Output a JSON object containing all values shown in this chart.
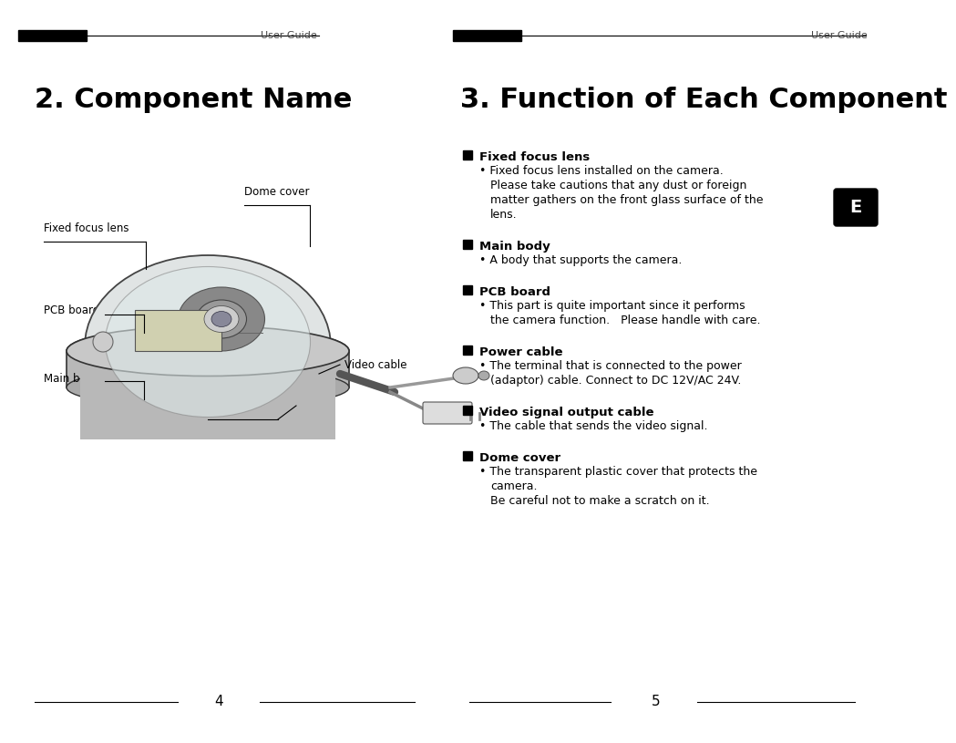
{
  "bg_color": "#ffffff",
  "header_text": "User Guide",
  "header_text_color": "#444444",
  "left_title": "2. Component Name",
  "right_title": "3. Function of Each Component",
  "title_color": "#000000",
  "page_left": "4",
  "page_right": "5",
  "e_badge_color": "#000000",
  "e_badge_text": "E",
  "e_badge_text_color": "#ffffff",
  "sections": [
    {
      "heading": "Fixed focus lens",
      "lines": [
        {
          "indent": 1,
          "text": "• Fixed focus lens installed on the camera."
        },
        {
          "indent": 2,
          "text": "Please take cautions that any dust or foreign"
        },
        {
          "indent": 2,
          "text": "matter gathers on the front glass surface of the"
        },
        {
          "indent": 2,
          "text": "lens."
        }
      ]
    },
    {
      "heading": "Main body",
      "lines": [
        {
          "indent": 1,
          "text": "• A body that supports the camera."
        }
      ]
    },
    {
      "heading": "PCB board",
      "lines": [
        {
          "indent": 1,
          "text": "• This part is quite important since it performs"
        },
        {
          "indent": 2,
          "text": "the camera function.   Please handle with care."
        }
      ]
    },
    {
      "heading": "Power cable",
      "lines": [
        {
          "indent": 1,
          "text": "• The terminal that is connected to the power"
        },
        {
          "indent": 2,
          "text": "(adaptor) cable. Connect to DC 12V/AC 24V."
        }
      ]
    },
    {
      "heading": "Video signal output cable",
      "lines": [
        {
          "indent": 1,
          "text": "• The cable that sends the video signal."
        }
      ]
    },
    {
      "heading": "Dome cover",
      "lines": [
        {
          "indent": 1,
          "text": "• The transparent plastic cover that protects the"
        },
        {
          "indent": 2,
          "text": "camera."
        },
        {
          "indent": 2,
          "text": "Be careful not to make a scratch on it."
        }
      ]
    }
  ]
}
